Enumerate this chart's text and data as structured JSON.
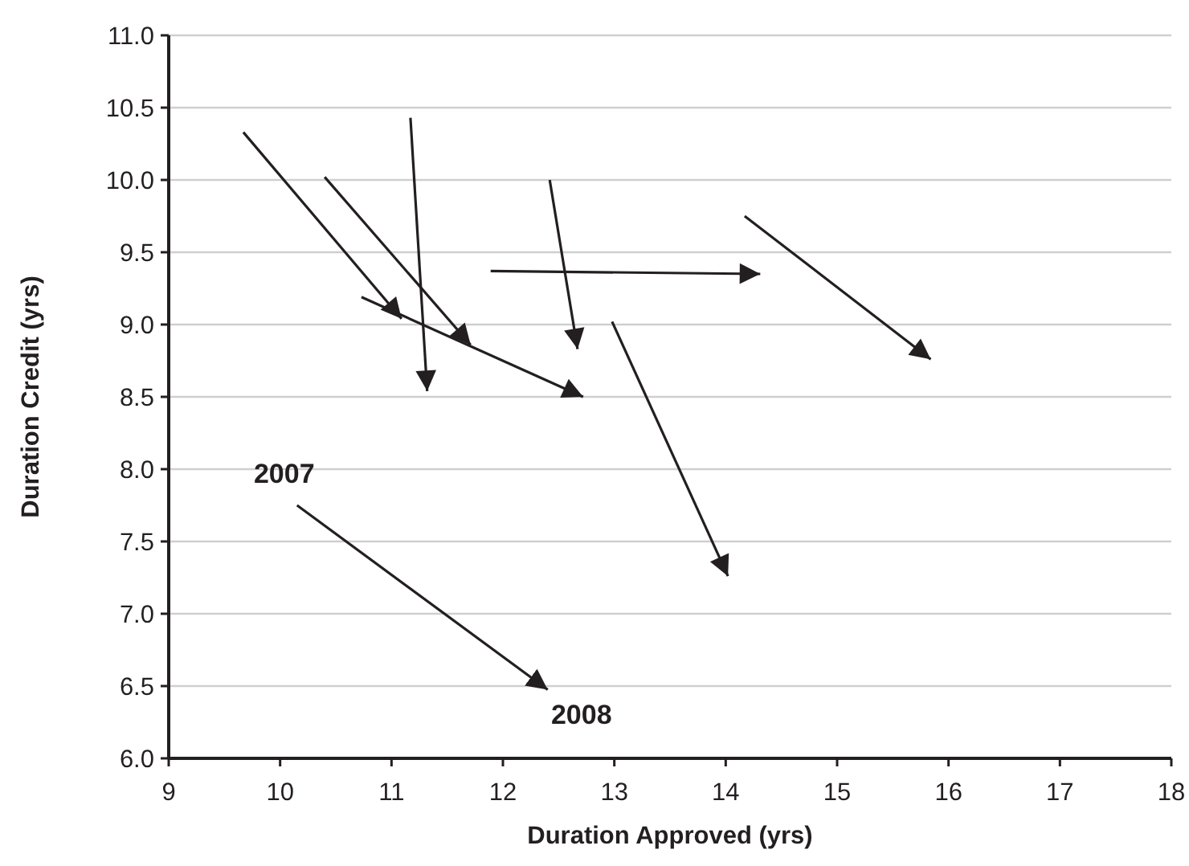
{
  "chart_data": {
    "type": "line",
    "xlabel": "Duration Approved (yrs)",
    "ylabel": "Duration Credit (yrs)",
    "xlim": [
      9,
      18
    ],
    "xticks": [
      9,
      10,
      11,
      12,
      13,
      14,
      15,
      16,
      17,
      18
    ],
    "ylim": [
      6,
      11
    ],
    "yticks": [
      {
        "value": 6,
        "label": "6.0"
      },
      {
        "value": 6.5,
        "label": "6.5"
      },
      {
        "value": 7,
        "label": "7.0"
      },
      {
        "value": 7.5,
        "label": "7.5"
      },
      {
        "value": 8,
        "label": "8.0"
      },
      {
        "value": 8.5,
        "label": "8.5"
      },
      {
        "value": 9,
        "label": "9.0"
      },
      {
        "value": 9.5,
        "label": "9.5"
      },
      {
        "value": 10,
        "label": "10.0"
      },
      {
        "value": 10.5,
        "label": "10.5"
      },
      {
        "value": 11,
        "label": "11.0"
      }
    ],
    "grid": "y",
    "line_style": "solid",
    "annotations": [
      "2007",
      "2008"
    ],
    "series": [
      {
        "color": "#231f20",
        "x": [
          9.67,
          11.09
        ],
        "values": [
          10.33,
          9.04
        ]
      },
      {
        "color": "#231f20",
        "x": [
          10.4,
          11.71
        ],
        "values": [
          10.02,
          8.86
        ]
      },
      {
        "color": "#231f20",
        "x": [
          11.17,
          11.32
        ],
        "values": [
          10.43,
          8.54
        ]
      },
      {
        "color": "#231f20",
        "x": [
          10.73,
          12.72
        ],
        "values": [
          9.19,
          8.5
        ]
      },
      {
        "color": "#231f20",
        "x": [
          12.42,
          12.67
        ],
        "values": [
          10.0,
          8.83
        ]
      },
      {
        "color": "#231f20",
        "x": [
          11.89,
          14.31
        ],
        "values": [
          9.37,
          9.35
        ]
      },
      {
        "color": "#231f20",
        "x": [
          14.17,
          15.84
        ],
        "values": [
          9.75,
          8.76
        ]
      },
      {
        "color": "#231f20",
        "x": [
          12.98,
          14.02
        ],
        "values": [
          9.02,
          7.26
        ]
      }
    ]
  }
}
